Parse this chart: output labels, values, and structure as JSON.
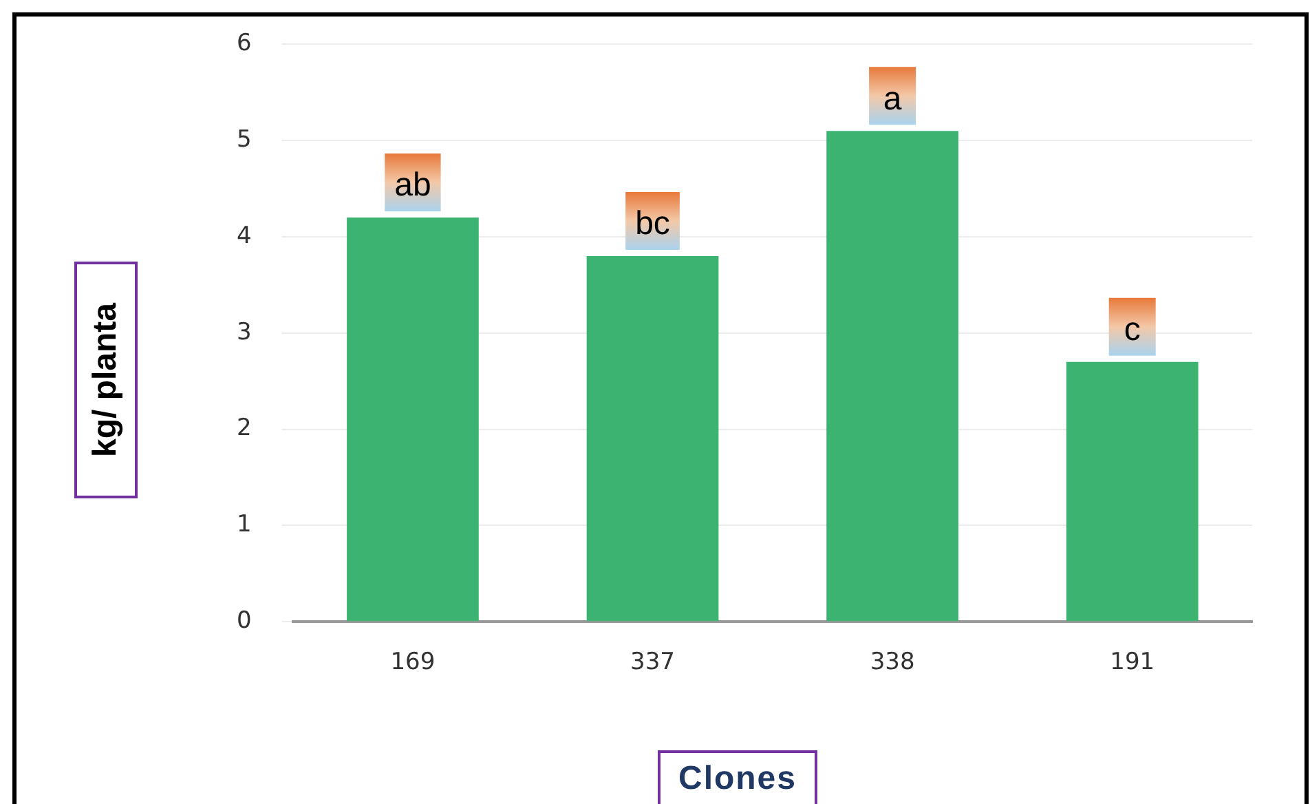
{
  "chart_data": {
    "type": "bar",
    "xlabel": "Clones",
    "ylabel": "kg/ planta",
    "categories": [
      "169",
      "337",
      "338",
      "191"
    ],
    "values": [
      4.2,
      3.8,
      5.1,
      2.7
    ],
    "color": "#3cb371",
    "ylim": [
      0,
      6
    ],
    "yticks": [
      0,
      1,
      2,
      3,
      4,
      5,
      6
    ],
    "grid": "y",
    "legend": false,
    "annotations": [
      {
        "text": "ab",
        "x": "169",
        "y": 4.55
      },
      {
        "text": "bc",
        "x": "337",
        "y": 4.15
      },
      {
        "text": "a",
        "x": "338",
        "y": 5.45
      },
      {
        "text": "c",
        "x": "191",
        "y": 3.05
      }
    ]
  }
}
